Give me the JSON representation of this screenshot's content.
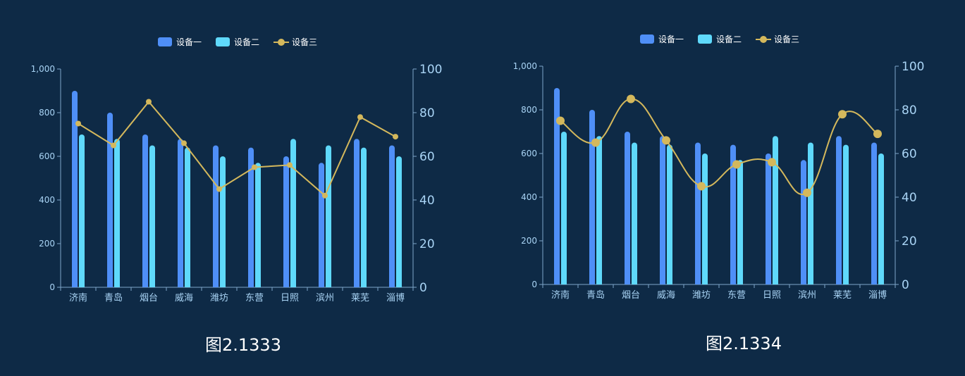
{
  "colors": {
    "background": "#0e2a46",
    "series1": "#4f8ff7",
    "series2": "#5fd9fb",
    "series3": "#d4b85c",
    "axis": "#7ea6c9",
    "text": "#a9d4f5",
    "legend_text": "#ffffff"
  },
  "captions": [
    "图2.1333",
    "图2.1334"
  ],
  "chart_data": [
    {
      "type": "bar",
      "line_style": "straight",
      "categories": [
        "济南",
        "青岛",
        "烟台",
        "威海",
        "潍坊",
        "东营",
        "日照",
        "滨州",
        "莱芜",
        "淄博"
      ],
      "series": [
        {
          "name": "设备一",
          "type": "bar",
          "axis": "left",
          "values": [
            900,
            800,
            700,
            680,
            650,
            640,
            600,
            570,
            680,
            650
          ]
        },
        {
          "name": "设备二",
          "type": "bar",
          "axis": "left",
          "values": [
            700,
            680,
            650,
            640,
            600,
            570,
            680,
            650,
            640,
            600
          ]
        },
        {
          "name": "设备三",
          "type": "line",
          "axis": "right",
          "values": [
            75,
            65,
            85,
            66,
            45,
            55,
            56,
            42,
            78,
            69
          ]
        }
      ],
      "yleft": {
        "range": [
          0,
          1000
        ],
        "ticks": [
          "0",
          "200",
          "400",
          "600",
          "800",
          "1,000"
        ]
      },
      "yright": {
        "range": [
          0,
          100
        ],
        "ticks": [
          "0",
          "20",
          "40",
          "60",
          "80",
          "100"
        ]
      },
      "legend": "top-center",
      "grid": false
    },
    {
      "type": "bar",
      "line_style": "smooth",
      "categories": [
        "济南",
        "青岛",
        "烟台",
        "威海",
        "潍坊",
        "东营",
        "日照",
        "滨州",
        "莱芜",
        "淄博"
      ],
      "series": [
        {
          "name": "设备一",
          "type": "bar",
          "axis": "left",
          "values": [
            900,
            800,
            700,
            680,
            650,
            640,
            600,
            570,
            680,
            650
          ]
        },
        {
          "name": "设备二",
          "type": "bar",
          "axis": "left",
          "values": [
            700,
            680,
            650,
            640,
            600,
            570,
            680,
            650,
            640,
            600
          ]
        },
        {
          "name": "设备三",
          "type": "line",
          "axis": "right",
          "values": [
            75,
            65,
            85,
            66,
            45,
            55,
            56,
            42,
            78,
            69
          ]
        }
      ],
      "yleft": {
        "range": [
          0,
          1000
        ],
        "ticks": [
          "0",
          "200",
          "400",
          "600",
          "800",
          "1,000"
        ]
      },
      "yright": {
        "range": [
          0,
          100
        ],
        "ticks": [
          "0",
          "20",
          "40",
          "60",
          "80",
          "100"
        ]
      },
      "legend": "top-center",
      "grid": false
    }
  ]
}
